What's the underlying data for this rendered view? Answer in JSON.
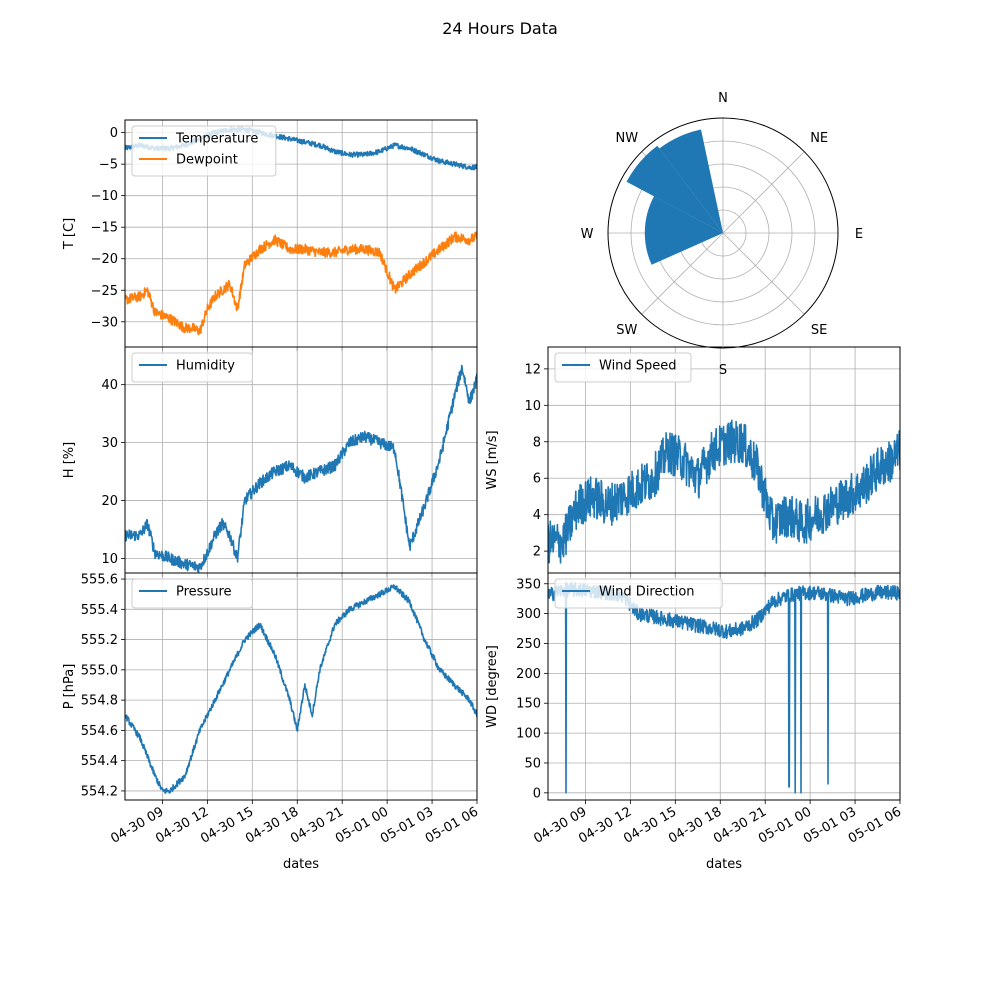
{
  "figure": {
    "title": "24 Hours Data"
  },
  "colors": {
    "blue": "#1f77b4",
    "orange": "#ff7f0e",
    "grid": "#b0b0b0"
  },
  "chart_data": [
    {
      "id": "temp",
      "type": "line",
      "ylabel": "T [C]",
      "xlabel": "",
      "ylim": [
        -34,
        2
      ],
      "yticks": [
        0,
        -5,
        -10,
        -15,
        -20,
        -25,
        -30
      ],
      "ytick_labels": [
        "0",
        "−5",
        "−10",
        "−15",
        "−20",
        "−25",
        "−30"
      ],
      "xlim": [
        0,
        23.5
      ],
      "legend_position": "upper-left",
      "grid": true,
      "series": [
        {
          "name": "Temperature",
          "color": "#1f77b4",
          "noise": 0.4,
          "x": [
            0,
            1,
            2,
            3,
            4,
            5,
            6,
            7,
            8,
            9,
            10,
            11,
            12,
            13,
            14,
            15,
            16,
            17,
            18,
            19,
            20,
            21,
            22,
            23,
            23.5
          ],
          "y": [
            -2.5,
            -2,
            -2.5,
            -2.5,
            -2,
            -1,
            0,
            0.5,
            0.5,
            0,
            -0.5,
            -1,
            -1.5,
            -2,
            -3,
            -3.5,
            -3.5,
            -3,
            -2,
            -2.5,
            -3.5,
            -4.5,
            -5,
            -5.5,
            -5.5
          ]
        },
        {
          "name": "Dewpoint",
          "color": "#ff7f0e",
          "noise": 0.8,
          "x": [
            0,
            1,
            1.5,
            2,
            3,
            4,
            4.5,
            5,
            5.5,
            6,
            6.5,
            7,
            7.5,
            8,
            9,
            10,
            11,
            12,
            13,
            14,
            15,
            16,
            17,
            18,
            19,
            20,
            21,
            22,
            23,
            23.5
          ],
          "y": [
            -26.5,
            -26,
            -25,
            -28.5,
            -29.5,
            -31,
            -31,
            -31.5,
            -28,
            -26,
            -25,
            -24,
            -28,
            -21,
            -18.5,
            -17,
            -18.5,
            -18.5,
            -19,
            -19,
            -18.5,
            -18.5,
            -19,
            -25,
            -22.5,
            -20.5,
            -18.5,
            -16.5,
            -17,
            -16.5
          ]
        }
      ]
    },
    {
      "id": "humidity",
      "type": "line",
      "ylabel": "H [%]",
      "xlabel": "",
      "ylim": [
        7.5,
        46.5
      ],
      "yticks": [
        10,
        20,
        30,
        40
      ],
      "ytick_labels": [
        "10",
        "20",
        "30",
        "40"
      ],
      "xlim": [
        0,
        23.5
      ],
      "legend_position": "upper-left",
      "grid": true,
      "series": [
        {
          "name": "Humidity",
          "color": "#1f77b4",
          "noise": 1.0,
          "x": [
            0,
            1,
            1.5,
            2,
            3,
            4,
            5,
            5.5,
            6,
            6.5,
            7,
            7.5,
            8,
            9,
            10,
            11,
            12,
            13,
            14,
            15,
            16,
            17,
            18,
            19,
            20,
            21,
            22,
            22.5,
            23,
            23.5
          ],
          "y": [
            14,
            14,
            16,
            11,
            10,
            9,
            8.5,
            11,
            14,
            16,
            14,
            10,
            20,
            23,
            25,
            26,
            24,
            25,
            26,
            30,
            31,
            30,
            29,
            12,
            19,
            27,
            38,
            43,
            37,
            41
          ]
        }
      ]
    },
    {
      "id": "pressure",
      "type": "line",
      "ylabel": "P [hPa]",
      "xlabel": "dates",
      "ylim": [
        554.14,
        555.64
      ],
      "yticks": [
        554.2,
        554.4,
        554.6,
        554.8,
        555.0,
        555.2,
        555.4,
        555.6
      ],
      "ytick_labels": [
        "554.2",
        "554.4",
        "554.6",
        "554.8",
        "555.0",
        "555.2",
        "555.4",
        "555.6"
      ],
      "xlim": [
        0,
        23.5
      ],
      "xticks": [
        2.5,
        5.5,
        8.5,
        11.5,
        14.5,
        17.5,
        20.5,
        23.5
      ],
      "xtick_labels": [
        "04-30 09",
        "04-30 12",
        "04-30 15",
        "04-30 18",
        "04-30 21",
        "05-01 00",
        "05-01 03",
        "05-01 06"
      ],
      "legend_position": "upper-left",
      "grid": true,
      "series": [
        {
          "name": "Pressure",
          "color": "#1f77b4",
          "noise": 0.02,
          "x": [
            0,
            1,
            2,
            2.5,
            3,
            4,
            5,
            6,
            7,
            8,
            9,
            10,
            11,
            11.5,
            12,
            12.5,
            13,
            14,
            15,
            16,
            17,
            18,
            19,
            20,
            21,
            22,
            23,
            23.5
          ],
          "y": [
            554.7,
            554.55,
            554.3,
            554.2,
            554.2,
            554.3,
            554.6,
            554.8,
            555.0,
            555.2,
            555.3,
            555.1,
            554.8,
            554.6,
            554.9,
            554.7,
            555.0,
            555.3,
            555.4,
            555.45,
            555.5,
            555.55,
            555.45,
            555.2,
            555.0,
            554.9,
            554.8,
            554.7
          ]
        }
      ]
    },
    {
      "id": "windspeed",
      "type": "line",
      "ylabel": "WS [m/s]",
      "xlabel": "",
      "ylim": [
        0.8,
        13.2
      ],
      "yticks": [
        2,
        4,
        6,
        8,
        10,
        12
      ],
      "ytick_labels": [
        "2",
        "4",
        "6",
        "8",
        "10",
        "12"
      ],
      "xlim": [
        0,
        23.5
      ],
      "legend_position": "upper-left",
      "grid": true,
      "series": [
        {
          "name": "Wind Speed",
          "color": "#1f77b4",
          "noise": 1.2,
          "x": [
            0,
            1,
            2,
            3,
            4,
            5,
            6,
            7,
            8,
            9,
            10,
            11,
            12,
            13,
            14,
            15,
            16,
            17,
            18,
            19,
            20,
            21,
            22,
            23,
            23.5
          ],
          "y": [
            2.5,
            2.5,
            4.5,
            5,
            4.5,
            5,
            5.5,
            6,
            7.5,
            7,
            6,
            7.5,
            8,
            8,
            6.5,
            3.5,
            4,
            3.5,
            4,
            4.5,
            5,
            5.5,
            6.5,
            7,
            7.5
          ]
        }
      ]
    },
    {
      "id": "winddir",
      "type": "line",
      "ylabel": "WD [degree]",
      "xlabel": "dates",
      "ylim": [
        -12,
        368
      ],
      "yticks": [
        0,
        50,
        100,
        150,
        200,
        250,
        300,
        350
      ],
      "ytick_labels": [
        "0",
        "50",
        "100",
        "150",
        "200",
        "250",
        "300",
        "350"
      ],
      "xlim": [
        0,
        23.5
      ],
      "xticks": [
        2.5,
        5.5,
        8.5,
        11.5,
        14.5,
        17.5,
        20.5,
        23.5
      ],
      "xtick_labels": [
        "04-30 09",
        "04-30 12",
        "04-30 15",
        "04-30 18",
        "04-30 21",
        "05-01 00",
        "05-01 03",
        "05-01 06"
      ],
      "legend_position": "upper-left",
      "grid": true,
      "series": [
        {
          "name": "Wind Direction",
          "color": "#1f77b4",
          "noise": 12,
          "x": [
            0,
            1,
            2,
            3,
            4,
            5,
            6,
            7,
            8,
            9,
            10,
            11,
            12,
            13,
            14,
            15,
            16,
            17,
            18,
            19,
            20,
            21,
            22,
            23,
            23.5
          ],
          "y": [
            330,
            340,
            340,
            338,
            335,
            330,
            300,
            295,
            290,
            285,
            280,
            275,
            270,
            275,
            290,
            320,
            330,
            335,
            335,
            330,
            325,
            330,
            335,
            335,
            335
          ],
          "spikes": [
            {
              "x": 1.2,
              "y": 0
            },
            {
              "x": 16.1,
              "y": 10
            },
            {
              "x": 16.5,
              "y": 0
            },
            {
              "x": 16.9,
              "y": 0
            },
            {
              "x": 18.7,
              "y": 15
            }
          ]
        }
      ]
    },
    {
      "id": "windrose",
      "type": "polar-bar",
      "direction_labels": [
        "N",
        "NE",
        "E",
        "SE",
        "S",
        "SW",
        "W",
        "NW"
      ],
      "radial_max": 1.0,
      "radial_rings": [
        0.2,
        0.4,
        0.6,
        0.8,
        1.0
      ],
      "color": "#1f77b4",
      "sectors": [
        {
          "label": "N",
          "from_deg": -12,
          "to_deg": 12,
          "value": 0.0
        },
        {
          "label": "NNW",
          "from_deg": 323,
          "to_deg": 348,
          "value": 0.92
        },
        {
          "label": "NW",
          "from_deg": 298,
          "to_deg": 323,
          "value": 0.95
        },
        {
          "label": "WNW",
          "from_deg": 270,
          "to_deg": 298,
          "value": 0.68
        },
        {
          "label": "W",
          "from_deg": 246,
          "to_deg": 270,
          "value": 0.68
        }
      ]
    }
  ]
}
